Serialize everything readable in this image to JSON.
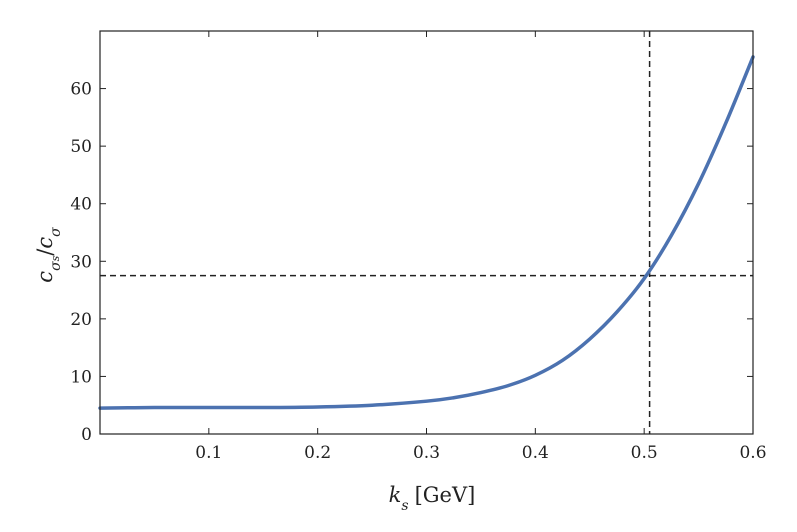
{
  "chart_data": {
    "type": "line",
    "xlabel_var": "k",
    "xlabel_sub": "s",
    "xlabel_unit": "[GeV]",
    "ylabel_num": "c",
    "ylabel_num_sub": "σ",
    "ylabel_num_subsub": "s",
    "ylabel_slash": "/",
    "ylabel_den": "c",
    "ylabel_den_sub": "σ",
    "xlim": [
      0.0,
      0.6
    ],
    "ylim": [
      0,
      70
    ],
    "xticks": [
      0.1,
      0.2,
      0.3,
      0.4,
      0.5,
      0.6
    ],
    "xtick_labels": [
      "0.1",
      "0.2",
      "0.3",
      "0.4",
      "0.5",
      "0.6"
    ],
    "yticks": [
      0,
      10,
      20,
      30,
      40,
      50,
      60
    ],
    "ytick_labels": [
      "0",
      "10",
      "20",
      "30",
      "40",
      "50",
      "60"
    ],
    "grid": false,
    "series": [
      {
        "color": "#4c72b0",
        "x": [
          0.0,
          0.05,
          0.1,
          0.15,
          0.2,
          0.25,
          0.3,
          0.325,
          0.35,
          0.375,
          0.4,
          0.425,
          0.45,
          0.475,
          0.5,
          0.525,
          0.55,
          0.575,
          0.6
        ],
        "y": [
          4.5,
          4.6,
          4.6,
          4.6,
          4.7,
          5.0,
          5.7,
          6.3,
          7.2,
          8.4,
          10.2,
          12.8,
          16.5,
          21.2,
          27.0,
          34.5,
          43.5,
          54.0,
          65.5
        ]
      }
    ],
    "reference_lines": [
      {
        "orientation": "vertical",
        "x": 0.505,
        "style": "dashed",
        "color": "#222222"
      },
      {
        "orientation": "horizontal",
        "y": 27.5,
        "style": "dashed",
        "color": "#222222"
      }
    ]
  }
}
